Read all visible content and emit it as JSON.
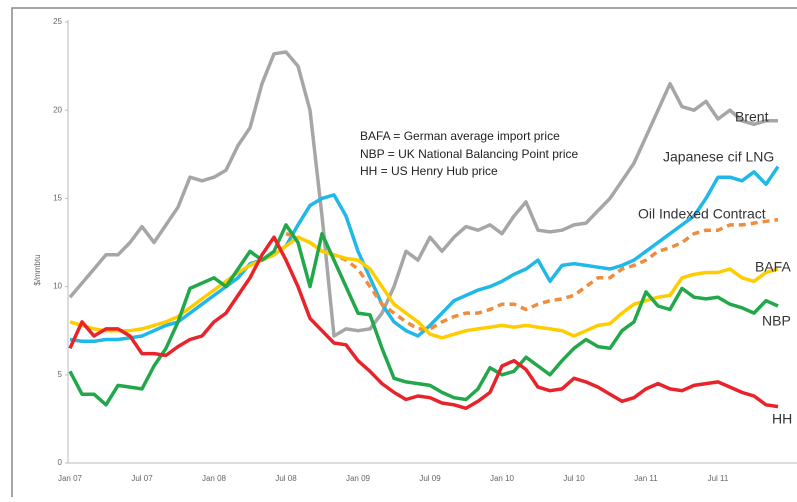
{
  "chart_data": {
    "type": "line",
    "y_label": "$/mmbtu",
    "annotation": [
      "BAFA = German average import price",
      "NBP = UK National Balancing Point price",
      "HH = US Henry Hub price"
    ],
    "categories": [
      "Jan 07",
      null,
      null,
      null,
      null,
      null,
      "Jul 07",
      null,
      null,
      null,
      null,
      null,
      "Jan 08",
      null,
      null,
      null,
      null,
      null,
      "Jul 08",
      null,
      null,
      null,
      null,
      null,
      "Jan 09",
      null,
      null,
      null,
      null,
      null,
      "Jul 09",
      null,
      null,
      null,
      null,
      null,
      "Jan 10",
      null,
      null,
      null,
      null,
      null,
      "Jul 10",
      null,
      null,
      null,
      null,
      null,
      "Jan 11",
      null,
      null,
      null,
      null,
      null,
      "Jul 11",
      null,
      null,
      null,
      null,
      null
    ],
    "ylim": [
      0,
      25
    ],
    "yticks": [
      0,
      5,
      10,
      15,
      20,
      25
    ],
    "series": [
      {
        "name": "Brent",
        "color": "#a6a6a6",
        "values": [
          9.4,
          10.2,
          11,
          11.8,
          11.8,
          12.5,
          13.4,
          12.5,
          13.5,
          14.5,
          16.2,
          16,
          16.2,
          16.6,
          18,
          19,
          21.5,
          23.2,
          23.3,
          22.5,
          20,
          14,
          7.2,
          7.6,
          7.5,
          7.6,
          8.5,
          10,
          12,
          11.5,
          12.8,
          12,
          12.8,
          13.4,
          13.2,
          13.5,
          13,
          14,
          14.8,
          13.2,
          13.1,
          13.2,
          13.5,
          13.6,
          14.3,
          15,
          16,
          17,
          18.5,
          20,
          21.5,
          20.2,
          20,
          20.5,
          19.5,
          20,
          19.4,
          19.2,
          19.4,
          19.4
        ]
      },
      {
        "name": "Japanese cif LNG",
        "color": "#1fb8e8",
        "values": [
          7,
          6.9,
          6.9,
          7,
          7,
          7.1,
          7.2,
          7.5,
          7.8,
          8,
          8.5,
          9,
          9.5,
          10,
          10.5,
          11.3,
          11.5,
          11.8,
          12.3,
          13.5,
          14.6,
          15,
          15.2,
          14,
          12,
          10.5,
          9,
          8,
          7.5,
          7.2,
          7.8,
          8.5,
          9.2,
          9.5,
          9.8,
          10,
          10.3,
          10.7,
          11,
          11.5,
          10.3,
          11.2,
          11.3,
          11.2,
          11.1,
          11,
          11.2,
          11.5,
          12,
          12.5,
          13,
          13.5,
          14,
          15,
          16.2,
          16.2,
          16,
          16.5,
          15.8,
          16.8
        ]
      },
      {
        "name": "Oil Indexed Contract",
        "color": "#f08c3c",
        "dashed": true,
        "values": [
          null,
          null,
          null,
          null,
          null,
          null,
          null,
          null,
          null,
          null,
          null,
          null,
          null,
          null,
          null,
          null,
          null,
          null,
          13,
          12.8,
          12.5,
          12,
          11.8,
          11.5,
          11,
          10,
          9,
          8.5,
          8,
          7.6,
          7.6,
          8,
          8.3,
          8.5,
          8.5,
          8.7,
          9,
          9,
          8.7,
          9,
          9.2,
          9.3,
          9.5,
          10,
          10.5,
          10.5,
          11,
          11.2,
          11.5,
          12,
          12.2,
          12.5,
          13,
          13.2,
          13.2,
          13.5,
          13.5,
          13.6,
          13.7,
          13.8
        ]
      },
      {
        "name": "BAFA",
        "color": "#ffcc00",
        "values": [
          8,
          7.8,
          7.6,
          7.5,
          7.5,
          7.5,
          7.6,
          7.8,
          8,
          8.3,
          8.8,
          9.3,
          9.8,
          10.3,
          10.8,
          11.2,
          11.5,
          11.8,
          12.3,
          12.8,
          12.5,
          12,
          11.8,
          11.6,
          11.5,
          11,
          10,
          9,
          8.5,
          8,
          7.3,
          7.1,
          7.3,
          7.5,
          7.6,
          7.7,
          7.8,
          7.7,
          7.8,
          7.7,
          7.6,
          7.5,
          7.2,
          7.5,
          7.8,
          7.9,
          8.5,
          9,
          9.2,
          9.4,
          9.5,
          10.5,
          10.7,
          10.8,
          10.8,
          11,
          10.5,
          10.3,
          10.8,
          11
        ]
      },
      {
        "name": "NBP",
        "color": "#22a84a",
        "values": [
          5.2,
          3.9,
          3.9,
          3.3,
          4.4,
          4.3,
          4.2,
          5.5,
          6.5,
          8,
          9.9,
          10.2,
          10.5,
          10,
          11,
          12,
          11.5,
          12,
          13.5,
          12.5,
          10,
          13,
          11.5,
          10,
          8.5,
          8.4,
          6.5,
          4.8,
          4.6,
          4.5,
          4.4,
          4,
          3.7,
          3.6,
          4.2,
          5.4,
          5,
          5.2,
          6,
          5.5,
          5,
          5.8,
          6.5,
          7,
          6.6,
          6.5,
          7.5,
          8,
          9.7,
          8.9,
          8.7,
          9.9,
          9.4,
          9.3,
          9.4,
          9,
          8.8,
          8.5,
          9.2,
          8.9
        ]
      },
      {
        "name": "HH",
        "color": "#e8232a",
        "values": [
          6.5,
          8,
          7.2,
          7.6,
          7.6,
          7.2,
          6.2,
          6.2,
          6.1,
          6.6,
          7,
          7.2,
          8,
          8.5,
          9.5,
          10.5,
          11.8,
          12.8,
          11.5,
          10,
          8.2,
          7.5,
          6.8,
          6.7,
          5.8,
          5.2,
          4.5,
          4,
          3.6,
          3.8,
          3.7,
          3.4,
          3.3,
          3.1,
          3.5,
          4,
          5.5,
          5.8,
          5.3,
          4.3,
          4.1,
          4.2,
          4.8,
          4.6,
          4.3,
          3.9,
          3.5,
          3.7,
          4.2,
          4.5,
          4.2,
          4.1,
          4.4,
          4.5,
          4.6,
          4.3,
          4,
          3.8,
          3.3,
          3.2
        ]
      }
    ]
  }
}
